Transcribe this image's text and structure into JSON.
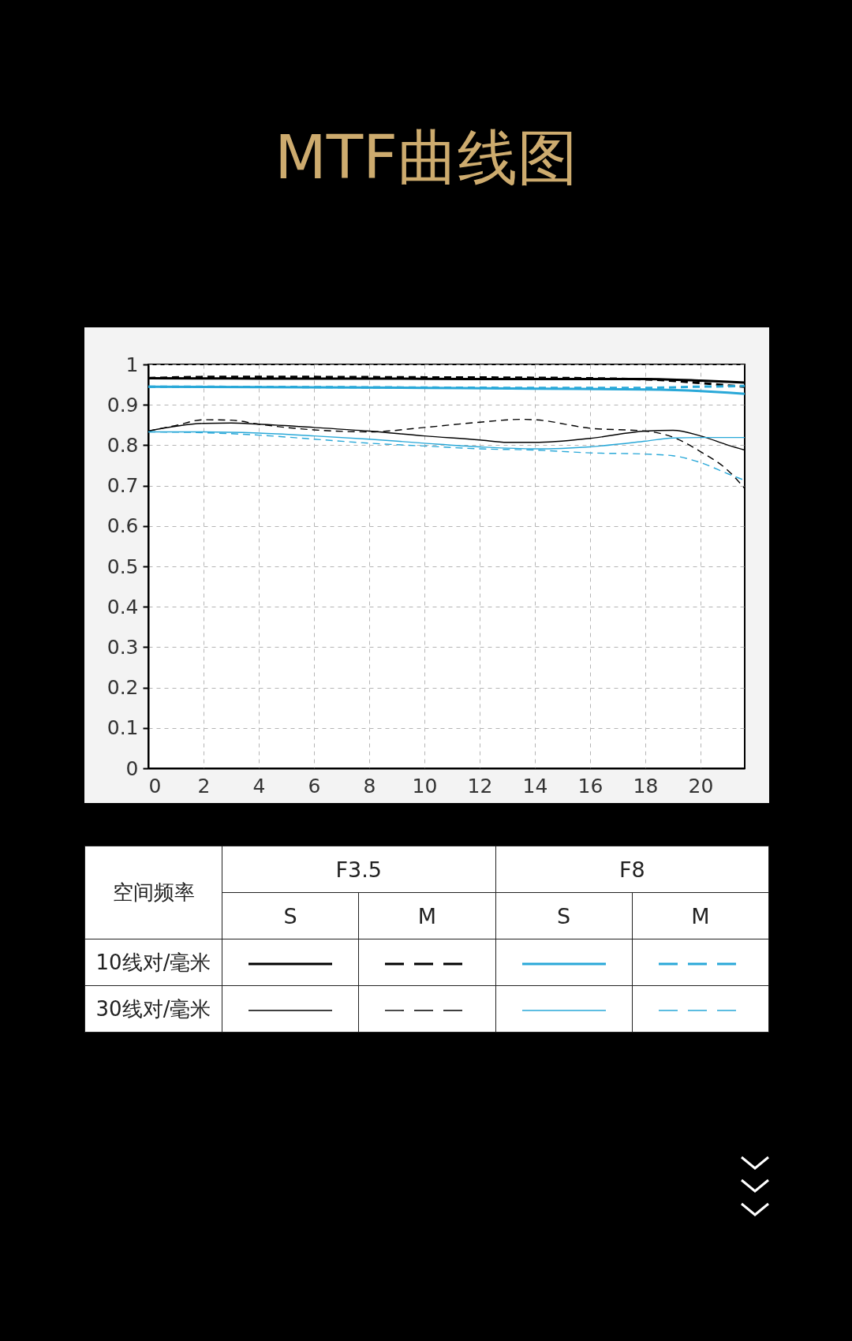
{
  "chart_data": {
    "type": "line",
    "title": "MTF曲线图",
    "xlim": [
      0,
      21.6
    ],
    "xticks": [
      0,
      2,
      4,
      6,
      8,
      10,
      12,
      14,
      16,
      18,
      20
    ],
    "ylim": [
      0,
      1
    ],
    "yticks": [
      0,
      {
        "value": 0.1,
        "label": "0.1"
      },
      {
        "value": 0.2,
        "label": "0.2"
      },
      {
        "value": 0.3,
        "label": "0.3"
      },
      {
        "value": 0.4,
        "label": "0.4"
      },
      {
        "value": 0.5,
        "label": "0.5"
      },
      {
        "value": 0.6,
        "label": "0.6"
      },
      {
        "value": 0.7,
        "label": "0.7"
      },
      {
        "value": 0.8,
        "label": "0.8"
      },
      {
        "value": 0.9,
        "label": "0.9"
      },
      1
    ],
    "grid": true,
    "annotations": [
      "空间频率",
      "F3.5",
      "F8",
      "S",
      "M",
      "S",
      "M",
      "10线对/毫米",
      "30线对/毫米"
    ],
    "series": [
      {
        "color": "#000000",
        "line_style": "solid",
        "x": [
          0,
          4,
          8,
          12,
          16,
          18,
          20,
          21,
          21.6
        ],
        "values": [
          0.966,
          0.965,
          0.965,
          0.964,
          0.964,
          0.964,
          0.96,
          0.957,
          0.955
        ]
      },
      {
        "color": "#000000",
        "line_style": "dashed",
        "x": [
          0,
          2,
          6,
          10,
          14,
          18,
          20,
          21,
          21.6
        ],
        "values": [
          0.966,
          0.969,
          0.969,
          0.968,
          0.967,
          0.963,
          0.954,
          0.948,
          0.945
        ]
      },
      {
        "color": "#29a8d8",
        "line_style": "solid",
        "x": [
          0,
          4,
          10,
          14,
          18,
          20,
          21,
          21.6
        ],
        "values": [
          0.945,
          0.944,
          0.942,
          0.94,
          0.938,
          0.934,
          0.93,
          0.927
        ]
      },
      {
        "color": "#29a8d8",
        "line_style": "dashed",
        "x": [
          0,
          6,
          14,
          18,
          20,
          21,
          21.6
        ],
        "values": [
          0.945,
          0.944,
          0.942,
          0.942,
          0.945,
          0.946,
          0.947
        ]
      },
      {
        "color": "#000000",
        "line_style": "solid",
        "x": [
          0,
          2,
          3,
          4,
          6,
          8,
          10,
          12,
          13,
          14,
          16,
          18,
          19,
          20,
          21,
          21.6
        ],
        "values": [
          0.835,
          0.854,
          0.855,
          0.852,
          0.844,
          0.835,
          0.823,
          0.813,
          0.807,
          0.807,
          0.817,
          0.835,
          0.837,
          0.823,
          0.8,
          0.788
        ]
      },
      {
        "color": "#000000",
        "line_style": "dashed",
        "x": [
          0,
          1,
          2,
          3,
          4,
          6,
          8,
          10,
          12,
          13.5,
          14,
          16,
          18,
          19,
          20,
          21,
          21.6
        ],
        "values": [
          0.835,
          0.849,
          0.863,
          0.862,
          0.852,
          0.838,
          0.833,
          0.844,
          0.857,
          0.864,
          0.863,
          0.842,
          0.835,
          0.82,
          0.784,
          0.737,
          0.693
        ]
      },
      {
        "color": "#29a8d8",
        "line_style": "solid",
        "x": [
          0,
          2,
          4,
          6,
          8,
          10,
          12,
          14,
          16,
          18,
          19,
          20,
          21.6
        ],
        "values": [
          0.833,
          0.833,
          0.83,
          0.823,
          0.815,
          0.805,
          0.796,
          0.791,
          0.796,
          0.81,
          0.818,
          0.819,
          0.819
        ]
      },
      {
        "color": "#29a8d8",
        "line_style": "dashed",
        "x": [
          0,
          2,
          4,
          6,
          8,
          10,
          12,
          14,
          16,
          18,
          19,
          20,
          21,
          21.6
        ],
        "values": [
          0.833,
          0.831,
          0.825,
          0.815,
          0.805,
          0.798,
          0.791,
          0.788,
          0.781,
          0.778,
          0.774,
          0.757,
          0.729,
          0.713
        ]
      }
    ]
  }
}
